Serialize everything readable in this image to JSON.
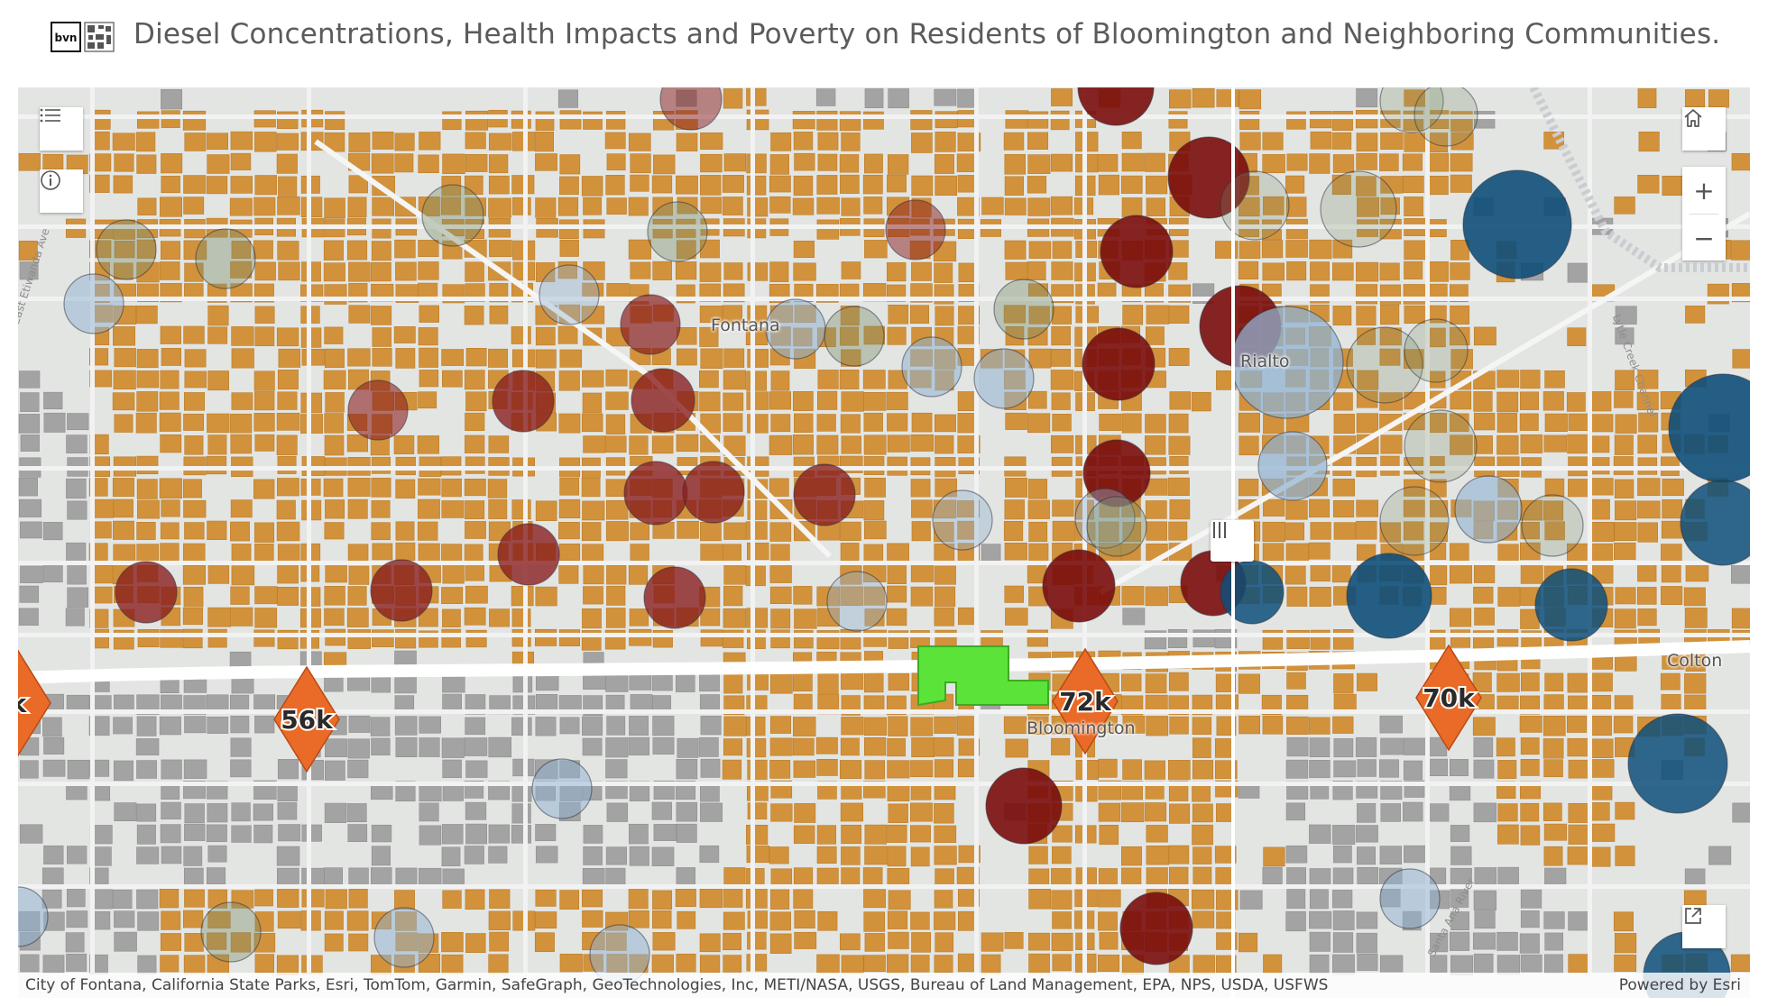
{
  "header": {
    "title": "Diesel Concentrations, Health Impacts and Poverty on Residents of Bloomington and Neighboring Communities.",
    "logo_text": "bvn"
  },
  "map": {
    "places": [
      "Fontana",
      "Rialto",
      "Bloomington",
      "Colton"
    ],
    "roads": [
      "East Etiwanda Ave",
      "Lytle Creek Channel",
      "Santa Ana River"
    ],
    "income_markers": [
      {
        "label": "k"
      },
      {
        "label": "56k"
      },
      {
        "label": "72k"
      },
      {
        "label": "70k"
      }
    ],
    "colors": {
      "background": "#e3e5e3",
      "residential_parcels": "#d2923b",
      "industrial_parcels": "#a3a3a3",
      "diesel_high": "#7a0d0d",
      "diesel_mid": "#8a1f1f",
      "health_impact": "#0e4f7a",
      "low_health_impact": "#90b2d2",
      "income_marker": "#ea6a27",
      "highlight_parcel": "#5ce33a",
      "swipe_divider": "#ffffff"
    },
    "controls": {
      "legend_icon": "list-icon",
      "info_icon": "info-icon",
      "home_icon": "home-icon",
      "zoom_in": "+",
      "zoom_out": "−",
      "share_icon": "share-icon",
      "swipe_icon": "swipe-handle-icon"
    },
    "attribution": "City of Fontana, California State Parks, Esri, TomTom, Garmin, SafeGraph, GeoTechnologies, Inc, METI/NASA, USGS, Bureau of Land Management, EPA, NPS, USDA, USFWS",
    "powered_by": "Powered by Esri"
  }
}
